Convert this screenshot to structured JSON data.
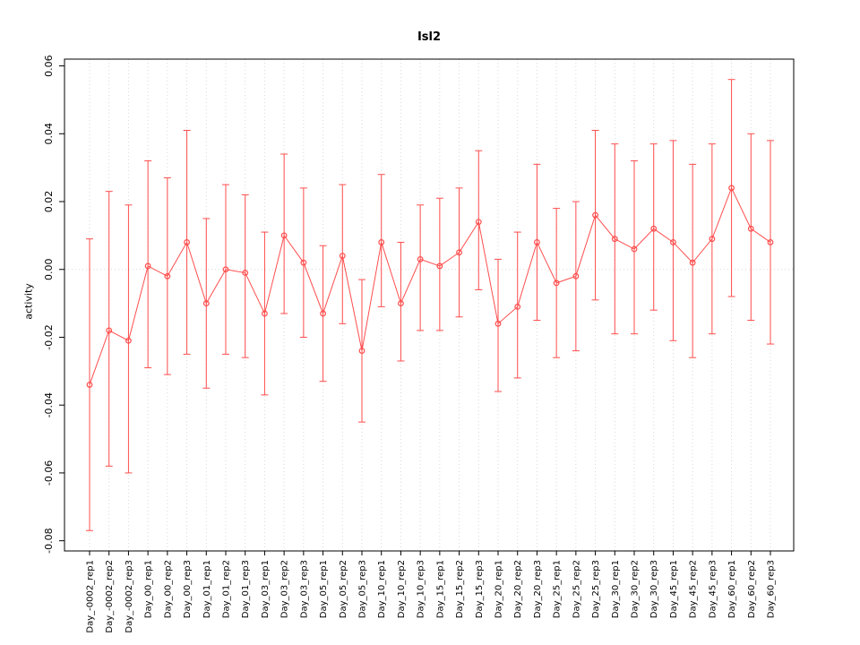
{
  "chart_data": {
    "type": "line",
    "title": "Isl2",
    "xlabel": "",
    "ylabel": "activity",
    "ylim": [
      -0.08,
      0.06
    ],
    "yticks": [
      -0.08,
      -0.06,
      -0.04,
      -0.02,
      0.0,
      0.02,
      0.04,
      0.06
    ],
    "grid": "vertical dotted gridline at each category; dotted horizontal line at y=0",
    "legend": "none",
    "series_color": "#ff4d4d",
    "point_style": "open-circle",
    "error_bars": true,
    "categories": [
      "Day_-0002_rep1",
      "Day_-0002_rep2",
      "Day_-0002_rep3",
      "Day_00_rep1",
      "Day_00_rep2",
      "Day_00_rep3",
      "Day_01_rep1",
      "Day_01_rep2",
      "Day_01_rep3",
      "Day_03_rep1",
      "Day_03_rep2",
      "Day_03_rep3",
      "Day_05_rep1",
      "Day_05_rep2",
      "Day_05_rep3",
      "Day_10_rep1",
      "Day_10_rep2",
      "Day_10_rep3",
      "Day_15_rep1",
      "Day_15_rep2",
      "Day_15_rep3",
      "Day_20_rep1",
      "Day_20_rep2",
      "Day_20_rep3",
      "Day_25_rep1",
      "Day_25_rep2",
      "Day_25_rep3",
      "Day_30_rep1",
      "Day_30_rep2",
      "Day_30_rep3",
      "Day_45_rep1",
      "Day_45_rep2",
      "Day_45_rep3",
      "Day_60_rep1",
      "Day_60_rep2",
      "Day_60_rep3"
    ],
    "values": [
      -0.034,
      -0.018,
      -0.021,
      0.001,
      -0.002,
      0.008,
      -0.01,
      0.0,
      -0.001,
      -0.013,
      0.01,
      0.002,
      -0.013,
      0.004,
      -0.024,
      0.008,
      -0.01,
      0.003,
      0.001,
      0.005,
      0.014,
      -0.016,
      -0.011,
      0.008,
      -0.004,
      -0.002,
      0.016,
      0.009,
      0.006,
      0.012,
      0.008,
      0.002,
      0.009,
      0.024,
      0.012,
      0.008
    ],
    "upper": [
      0.009,
      0.023,
      0.019,
      0.032,
      0.027,
      0.041,
      0.015,
      0.025,
      0.022,
      0.011,
      0.034,
      0.024,
      0.007,
      0.025,
      -0.003,
      0.028,
      0.008,
      0.019,
      0.021,
      0.024,
      0.035,
      0.003,
      0.011,
      0.031,
      0.018,
      0.02,
      0.041,
      0.037,
      0.032,
      0.037,
      0.038,
      0.031,
      0.037,
      0.056,
      0.04,
      0.038
    ],
    "lower": [
      -0.077,
      -0.058,
      -0.06,
      -0.029,
      -0.031,
      -0.025,
      -0.035,
      -0.025,
      -0.026,
      -0.037,
      -0.013,
      -0.02,
      -0.033,
      -0.016,
      -0.045,
      -0.011,
      -0.027,
      -0.018,
      -0.018,
      -0.014,
      -0.006,
      -0.036,
      -0.032,
      -0.015,
      -0.026,
      -0.024,
      -0.009,
      -0.019,
      -0.019,
      -0.012,
      -0.021,
      -0.026,
      -0.019,
      -0.008,
      -0.015,
      -0.022
    ]
  }
}
